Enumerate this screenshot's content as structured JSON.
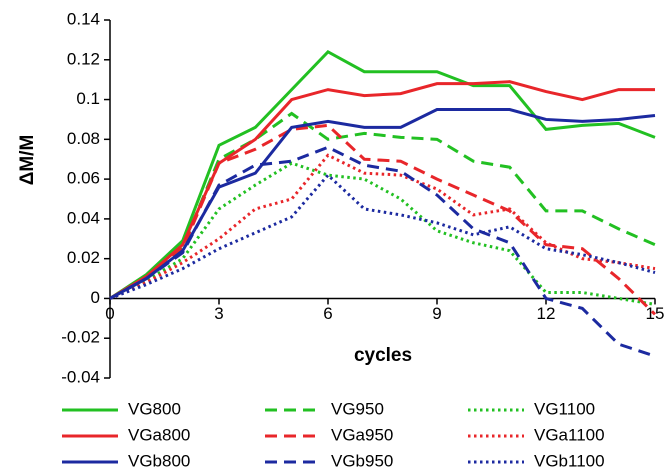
{
  "chart_data": {
    "type": "line",
    "x_label": "cycles",
    "y_label": "ΔM/M",
    "x": [
      0,
      1,
      2,
      3,
      4,
      5,
      6,
      7,
      8,
      9,
      10,
      11,
      12,
      13,
      14,
      15
    ],
    "xlim": [
      0,
      15
    ],
    "xticks": [
      0,
      3,
      6,
      9,
      12,
      15
    ],
    "ylim": [
      -0.04,
      0.14
    ],
    "yticks": [
      0.14,
      0.12,
      0.1,
      0.08,
      0.06,
      0.04,
      0.02,
      0,
      -0.02,
      -0.04
    ],
    "grid": false,
    "legend": "bottom",
    "series": [
      {
        "name": "VG800",
        "color": "#22c022",
        "style": "solid",
        "values": [
          0,
          0.012,
          0.029,
          0.077,
          0.086,
          0.105,
          0.124,
          0.114,
          0.114,
          0.114,
          0.107,
          0.107,
          0.085,
          0.087,
          0.088,
          0.081
        ]
      },
      {
        "name": "VG950",
        "color": "#22c022",
        "style": "dashed",
        "values": [
          0,
          0.011,
          0.026,
          0.07,
          0.08,
          0.093,
          0.08,
          0.083,
          0.081,
          0.08,
          0.069,
          0.066,
          0.044,
          0.044,
          0.035,
          0.027
        ]
      },
      {
        "name": "VG1100",
        "color": "#22c022",
        "style": "dotted",
        "values": [
          0,
          0.009,
          0.02,
          0.045,
          0.057,
          0.068,
          0.062,
          0.06,
          0.05,
          0.034,
          0.028,
          0.024,
          0.003,
          0.003,
          0.0,
          -0.003
        ]
      },
      {
        "name": "VGa800",
        "color": "#e8262a",
        "style": "solid",
        "values": [
          0,
          0.011,
          0.027,
          0.068,
          0.08,
          0.1,
          0.105,
          0.102,
          0.103,
          0.108,
          0.108,
          0.109,
          0.104,
          0.1,
          0.105,
          0.105
        ]
      },
      {
        "name": "VGa950",
        "color": "#e8262a",
        "style": "dashed",
        "values": [
          0,
          0.01,
          0.025,
          0.068,
          0.075,
          0.085,
          0.087,
          0.07,
          0.069,
          0.06,
          0.052,
          0.044,
          0.027,
          0.025,
          0.01,
          -0.008
        ]
      },
      {
        "name": "VGa1100",
        "color": "#e8262a",
        "style": "dotted",
        "values": [
          0,
          0.008,
          0.018,
          0.03,
          0.045,
          0.05,
          0.072,
          0.063,
          0.062,
          0.055,
          0.042,
          0.045,
          0.028,
          0.02,
          0.018,
          0.015
        ]
      },
      {
        "name": "VGb800",
        "color": "#1c2aa0",
        "style": "solid",
        "values": [
          0,
          0.01,
          0.024,
          0.056,
          0.063,
          0.086,
          0.089,
          0.086,
          0.086,
          0.095,
          0.095,
          0.095,
          0.09,
          0.089,
          0.09,
          0.092
        ]
      },
      {
        "name": "VGb950",
        "color": "#1c2aa0",
        "style": "dashed",
        "values": [
          0,
          0.01,
          0.023,
          0.057,
          0.067,
          0.069,
          0.076,
          0.067,
          0.064,
          0.052,
          0.035,
          0.028,
          0,
          -0.005,
          -0.023,
          -0.029
        ]
      },
      {
        "name": "VGb1100",
        "color": "#1c2aa0",
        "style": "dotted",
        "values": [
          0,
          0.007,
          0.015,
          0.025,
          0.033,
          0.041,
          0.062,
          0.045,
          0.042,
          0.038,
          0.032,
          0.036,
          0.025,
          0.022,
          0.018,
          0.013
        ]
      }
    ]
  }
}
